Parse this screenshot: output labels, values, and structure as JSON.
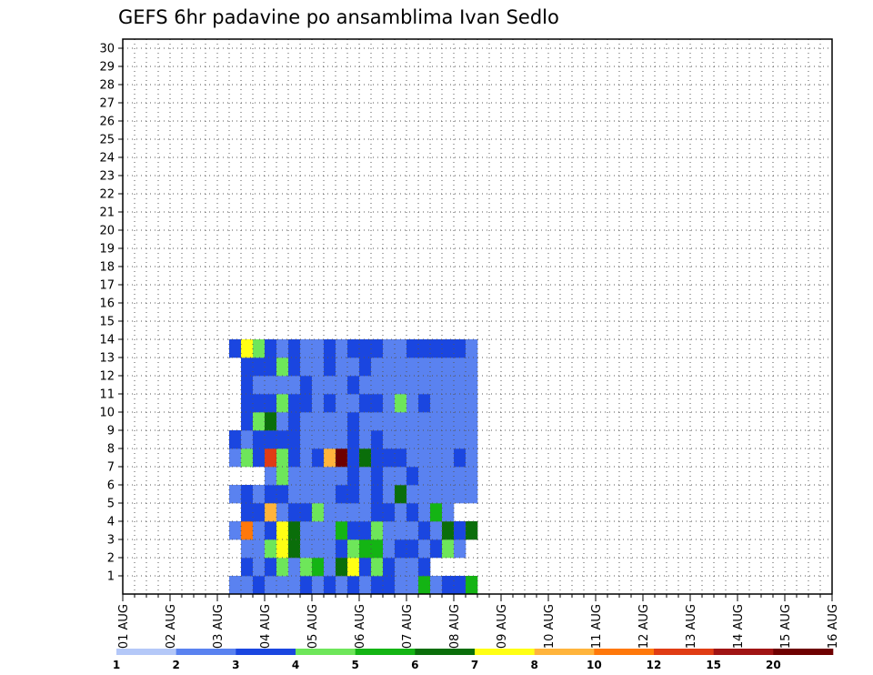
{
  "chart_data": {
    "type": "heatmap",
    "title": "GEFS 6hr padavine po ansamblima Ivan Sedlo",
    "y_labels": [
      "1",
      "2",
      "3",
      "4",
      "5",
      "6",
      "7",
      "8",
      "9",
      "10",
      "11",
      "12",
      "13",
      "14",
      "15",
      "16",
      "17",
      "18",
      "19",
      "20",
      "21",
      "22",
      "23",
      "24",
      "25",
      "26",
      "27",
      "28",
      "29",
      "30"
    ],
    "x_labels": [
      "01 AUG",
      "02 AUG",
      "03 AUG",
      "04 AUG",
      "05 AUG",
      "06 AUG",
      "07 AUG",
      "08 AUG",
      "09 AUG",
      "10 AUG",
      "11 AUG",
      "12 AUG",
      "13 AUG",
      "14 AUG",
      "15 AUG",
      "16 AUG"
    ],
    "steps_per_day": 4,
    "grid": true,
    "colorbar": {
      "position": "bottom",
      "labels": [
        "1",
        "2",
        "3",
        "4",
        "5",
        "6",
        "7",
        "8",
        "10",
        "12",
        "15",
        "20"
      ],
      "colors": [
        "#b4c8f8",
        "#5a82f0",
        "#1a46e0",
        "#6ee65a",
        "#14b414",
        "#0a6e0a",
        "#ffff14",
        "#ffb43c",
        "#ff780a",
        "#e03c14",
        "#a01414",
        "#6e0000"
      ]
    },
    "cells": [
      [
        0,
        9,
        1
      ],
      [
        0,
        10,
        1
      ],
      [
        0,
        11,
        2
      ],
      [
        0,
        12,
        1
      ],
      [
        0,
        13,
        1
      ],
      [
        0,
        14,
        1
      ],
      [
        0,
        15,
        2
      ],
      [
        0,
        16,
        1
      ],
      [
        0,
        17,
        2
      ],
      [
        0,
        18,
        1
      ],
      [
        0,
        19,
        2
      ],
      [
        0,
        20,
        1
      ],
      [
        0,
        21,
        2
      ],
      [
        0,
        22,
        2
      ],
      [
        0,
        23,
        1
      ],
      [
        0,
        24,
        1
      ],
      [
        0,
        25,
        4
      ],
      [
        0,
        26,
        1
      ],
      [
        0,
        27,
        2
      ],
      [
        0,
        28,
        2
      ],
      [
        0,
        29,
        4
      ],
      [
        1,
        10,
        2
      ],
      [
        1,
        11,
        1
      ],
      [
        1,
        12,
        2
      ],
      [
        1,
        13,
        3
      ],
      [
        1,
        14,
        1
      ],
      [
        1,
        15,
        3
      ],
      [
        1,
        16,
        4
      ],
      [
        1,
        17,
        1
      ],
      [
        1,
        18,
        5
      ],
      [
        1,
        19,
        6
      ],
      [
        1,
        20,
        2
      ],
      [
        1,
        21,
        3
      ],
      [
        1,
        22,
        2
      ],
      [
        1,
        23,
        1
      ],
      [
        1,
        24,
        1
      ],
      [
        1,
        25,
        2
      ],
      [
        2,
        10,
        1
      ],
      [
        2,
        11,
        1
      ],
      [
        2,
        12,
        3
      ],
      [
        2,
        13,
        6
      ],
      [
        2,
        14,
        5
      ],
      [
        2,
        15,
        1
      ],
      [
        2,
        16,
        1
      ],
      [
        2,
        17,
        1
      ],
      [
        2,
        18,
        2
      ],
      [
        2,
        19,
        3
      ],
      [
        2,
        20,
        4
      ],
      [
        2,
        21,
        4
      ],
      [
        2,
        22,
        1
      ],
      [
        2,
        23,
        2
      ],
      [
        2,
        24,
        2
      ],
      [
        2,
        25,
        1
      ],
      [
        2,
        26,
        2
      ],
      [
        2,
        27,
        3
      ],
      [
        2,
        28,
        1
      ],
      [
        3,
        9,
        1
      ],
      [
        3,
        10,
        8
      ],
      [
        3,
        11,
        1
      ],
      [
        3,
        12,
        2
      ],
      [
        3,
        13,
        6
      ],
      [
        3,
        14,
        5
      ],
      [
        3,
        15,
        1
      ],
      [
        3,
        16,
        1
      ],
      [
        3,
        17,
        1
      ],
      [
        3,
        18,
        4
      ],
      [
        3,
        19,
        2
      ],
      [
        3,
        20,
        2
      ],
      [
        3,
        21,
        3
      ],
      [
        3,
        22,
        1
      ],
      [
        3,
        23,
        1
      ],
      [
        3,
        24,
        1
      ],
      [
        3,
        25,
        2
      ],
      [
        3,
        26,
        1
      ],
      [
        3,
        27,
        5
      ],
      [
        3,
        28,
        2
      ],
      [
        3,
        29,
        5
      ],
      [
        4,
        10,
        2
      ],
      [
        4,
        11,
        2
      ],
      [
        4,
        12,
        7
      ],
      [
        4,
        13,
        1
      ],
      [
        4,
        14,
        2
      ],
      [
        4,
        15,
        2
      ],
      [
        4,
        16,
        3
      ],
      [
        4,
        17,
        1
      ],
      [
        4,
        18,
        1
      ],
      [
        4,
        19,
        1
      ],
      [
        4,
        20,
        1
      ],
      [
        4,
        21,
        2
      ],
      [
        4,
        22,
        2
      ],
      [
        4,
        23,
        1
      ],
      [
        4,
        24,
        2
      ],
      [
        4,
        25,
        1
      ],
      [
        4,
        26,
        4
      ],
      [
        4,
        27,
        1
      ],
      [
        5,
        9,
        1
      ],
      [
        5,
        10,
        2
      ],
      [
        5,
        11,
        1
      ],
      [
        5,
        12,
        2
      ],
      [
        5,
        13,
        2
      ],
      [
        5,
        14,
        1
      ],
      [
        5,
        15,
        1
      ],
      [
        5,
        16,
        1
      ],
      [
        5,
        17,
        1
      ],
      [
        5,
        18,
        2
      ],
      [
        5,
        19,
        2
      ],
      [
        5,
        20,
        1
      ],
      [
        5,
        21,
        2
      ],
      [
        5,
        22,
        1
      ],
      [
        5,
        23,
        5
      ],
      [
        5,
        24,
        1
      ],
      [
        5,
        25,
        1
      ],
      [
        5,
        26,
        1
      ],
      [
        5,
        27,
        1
      ],
      [
        5,
        28,
        1
      ],
      [
        5,
        29,
        1
      ],
      [
        6,
        12,
        1
      ],
      [
        6,
        13,
        3
      ],
      [
        6,
        14,
        1
      ],
      [
        6,
        15,
        1
      ],
      [
        6,
        16,
        1
      ],
      [
        6,
        17,
        1
      ],
      [
        6,
        18,
        1
      ],
      [
        6,
        19,
        2
      ],
      [
        6,
        20,
        1
      ],
      [
        6,
        21,
        2
      ],
      [
        6,
        22,
        1
      ],
      [
        6,
        23,
        1
      ],
      [
        6,
        24,
        2
      ],
      [
        6,
        25,
        1
      ],
      [
        6,
        26,
        1
      ],
      [
        6,
        27,
        1
      ],
      [
        6,
        28,
        1
      ],
      [
        6,
        29,
        1
      ],
      [
        7,
        9,
        1
      ],
      [
        7,
        10,
        3
      ],
      [
        7,
        11,
        2
      ],
      [
        7,
        12,
        9
      ],
      [
        7,
        13,
        3
      ],
      [
        7,
        14,
        2
      ],
      [
        7,
        15,
        1
      ],
      [
        7,
        16,
        2
      ],
      [
        7,
        17,
        7
      ],
      [
        7,
        18,
        11
      ],
      [
        7,
        19,
        2
      ],
      [
        7,
        20,
        5
      ],
      [
        7,
        21,
        2
      ],
      [
        7,
        22,
        2
      ],
      [
        7,
        23,
        2
      ],
      [
        7,
        24,
        1
      ],
      [
        7,
        25,
        1
      ],
      [
        7,
        26,
        1
      ],
      [
        7,
        27,
        1
      ],
      [
        7,
        28,
        2
      ],
      [
        7,
        29,
        1
      ],
      [
        8,
        9,
        2
      ],
      [
        8,
        10,
        1
      ],
      [
        8,
        11,
        2
      ],
      [
        8,
        12,
        2
      ],
      [
        8,
        13,
        2
      ],
      [
        8,
        14,
        2
      ],
      [
        8,
        15,
        1
      ],
      [
        8,
        16,
        1
      ],
      [
        8,
        17,
        1
      ],
      [
        8,
        18,
        1
      ],
      [
        8,
        19,
        2
      ],
      [
        8,
        20,
        1
      ],
      [
        8,
        21,
        2
      ],
      [
        8,
        22,
        1
      ],
      [
        8,
        23,
        1
      ],
      [
        8,
        24,
        1
      ],
      [
        8,
        25,
        1
      ],
      [
        8,
        26,
        1
      ],
      [
        8,
        27,
        1
      ],
      [
        8,
        28,
        1
      ],
      [
        8,
        29,
        1
      ],
      [
        9,
        10,
        2
      ],
      [
        9,
        11,
        3
      ],
      [
        9,
        12,
        5
      ],
      [
        9,
        13,
        1
      ],
      [
        9,
        14,
        2
      ],
      [
        9,
        15,
        1
      ],
      [
        9,
        16,
        1
      ],
      [
        9,
        17,
        1
      ],
      [
        9,
        18,
        1
      ],
      [
        9,
        19,
        2
      ],
      [
        9,
        20,
        1
      ],
      [
        9,
        21,
        1
      ],
      [
        9,
        22,
        1
      ],
      [
        9,
        23,
        1
      ],
      [
        9,
        24,
        1
      ],
      [
        9,
        25,
        1
      ],
      [
        9,
        26,
        1
      ],
      [
        9,
        27,
        1
      ],
      [
        9,
        28,
        1
      ],
      [
        9,
        29,
        1
      ],
      [
        10,
        10,
        2
      ],
      [
        10,
        11,
        2
      ],
      [
        10,
        12,
        2
      ],
      [
        10,
        13,
        3
      ],
      [
        10,
        14,
        2
      ],
      [
        10,
        15,
        2
      ],
      [
        10,
        16,
        1
      ],
      [
        10,
        17,
        2
      ],
      [
        10,
        18,
        1
      ],
      [
        10,
        19,
        1
      ],
      [
        10,
        20,
        2
      ],
      [
        10,
        21,
        2
      ],
      [
        10,
        22,
        1
      ],
      [
        10,
        23,
        3
      ],
      [
        10,
        24,
        1
      ],
      [
        10,
        25,
        2
      ],
      [
        10,
        26,
        1
      ],
      [
        10,
        27,
        1
      ],
      [
        10,
        28,
        1
      ],
      [
        10,
        29,
        1
      ],
      [
        11,
        10,
        2
      ],
      [
        11,
        11,
        1
      ],
      [
        11,
        12,
        1
      ],
      [
        11,
        13,
        1
      ],
      [
        11,
        14,
        1
      ],
      [
        11,
        15,
        2
      ],
      [
        11,
        16,
        1
      ],
      [
        11,
        17,
        1
      ],
      [
        11,
        18,
        1
      ],
      [
        11,
        19,
        2
      ],
      [
        11,
        20,
        1
      ],
      [
        11,
        21,
        1
      ],
      [
        11,
        22,
        1
      ],
      [
        11,
        23,
        1
      ],
      [
        11,
        24,
        1
      ],
      [
        11,
        25,
        1
      ],
      [
        11,
        26,
        1
      ],
      [
        11,
        27,
        1
      ],
      [
        11,
        28,
        1
      ],
      [
        11,
        29,
        1
      ],
      [
        12,
        10,
        2
      ],
      [
        12,
        11,
        2
      ],
      [
        12,
        12,
        2
      ],
      [
        12,
        13,
        3
      ],
      [
        12,
        14,
        2
      ],
      [
        12,
        15,
        1
      ],
      [
        12,
        16,
        1
      ],
      [
        12,
        17,
        2
      ],
      [
        12,
        18,
        1
      ],
      [
        12,
        19,
        1
      ],
      [
        12,
        20,
        2
      ],
      [
        12,
        21,
        1
      ],
      [
        12,
        22,
        1
      ],
      [
        12,
        23,
        1
      ],
      [
        12,
        24,
        1
      ],
      [
        12,
        25,
        1
      ],
      [
        12,
        26,
        1
      ],
      [
        12,
        27,
        1
      ],
      [
        12,
        28,
        1
      ],
      [
        12,
        29,
        1
      ],
      [
        13,
        9,
        2
      ],
      [
        13,
        10,
        6
      ],
      [
        13,
        11,
        3
      ],
      [
        13,
        12,
        2
      ],
      [
        13,
        13,
        1
      ],
      [
        13,
        14,
        2
      ],
      [
        13,
        15,
        1
      ],
      [
        13,
        16,
        1
      ],
      [
        13,
        17,
        2
      ],
      [
        13,
        18,
        1
      ],
      [
        13,
        19,
        2
      ],
      [
        13,
        20,
        2
      ],
      [
        13,
        21,
        2
      ],
      [
        13,
        22,
        1
      ],
      [
        13,
        23,
        1
      ],
      [
        13,
        24,
        2
      ],
      [
        13,
        25,
        2
      ],
      [
        13,
        26,
        2
      ],
      [
        13,
        27,
        2
      ],
      [
        13,
        28,
        2
      ],
      [
        13,
        29,
        1
      ]
    ]
  }
}
